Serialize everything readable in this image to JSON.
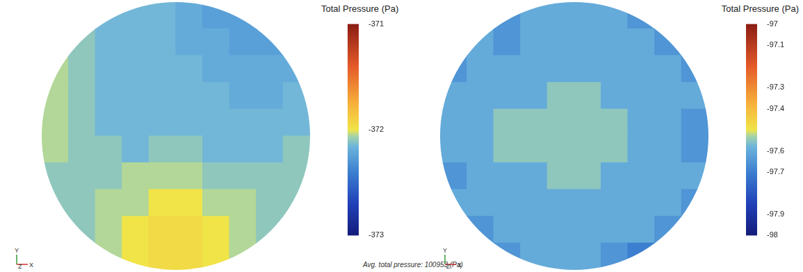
{
  "chart_data": [
    {
      "type": "heatmap",
      "axis_labels": {
        "x": "X",
        "y": "Y",
        "z": "Z"
      },
      "annotation": "Avg. total pressure: 100953 (Pa)",
      "color_bar": {
        "title": "Total Pressure (Pa)",
        "range": [
          -373,
          -371
        ],
        "ticks": [
          -373,
          -372,
          -371
        ]
      },
      "cells": [
        [
          null,
          null,
          -372.15,
          -372.15,
          -372.15,
          -372.2,
          -372.25,
          -372.25,
          null,
          null
        ],
        [
          null,
          -372.1,
          -372.15,
          -372.15,
          -372.15,
          -372.2,
          -372.2,
          -372.25,
          -372.25,
          null
        ],
        [
          -372.05,
          -372.1,
          -372.15,
          -372.15,
          -372.15,
          -372.15,
          -372.2,
          -372.2,
          -372.2,
          -372.2
        ],
        [
          -372.05,
          -372.1,
          -372.15,
          -372.15,
          -372.15,
          -372.15,
          -372.15,
          -372.2,
          -372.2,
          -372.15
        ],
        [
          -372.05,
          -372.1,
          -372.15,
          -372.15,
          -372.15,
          -372.15,
          -372.15,
          -372.15,
          -372.15,
          -372.15
        ],
        [
          -372.05,
          -372.1,
          -372.1,
          -372.15,
          -372.1,
          -372.1,
          -372.15,
          -372.15,
          -372.15,
          -372.1
        ],
        [
          -372.1,
          -372.1,
          -372.1,
          -372.05,
          -372.05,
          -372.05,
          -372.1,
          -372.1,
          -372.1,
          -372.1
        ],
        [
          -372.1,
          -372.1,
          -372.05,
          -372.05,
          -372.0,
          -372.0,
          -372.05,
          -372.05,
          -372.1,
          -372.1
        ],
        [
          null,
          -372.1,
          -372.05,
          -372.0,
          -371.95,
          -371.95,
          -372.0,
          -372.05,
          -372.1,
          null
        ],
        [
          null,
          null,
          -372.05,
          -372.0,
          -371.95,
          -371.95,
          -372.0,
          -372.05,
          null,
          null
        ]
      ]
    },
    {
      "type": "heatmap",
      "axis_labels": {
        "x": "X",
        "y": "Y",
        "z": "Z"
      },
      "color_bar": {
        "title": "Total Pressure (Pa)",
        "range": [
          -98,
          -97
        ],
        "ticks": [
          -98,
          -97.9,
          -97.7,
          -97.6,
          -97.4,
          -97.3,
          -97.1,
          -97
        ]
      },
      "cells": [
        [
          null,
          null,
          -97.65,
          -97.6,
          -97.6,
          -97.6,
          -97.6,
          -97.65,
          null,
          null
        ],
        [
          null,
          -97.6,
          -97.65,
          -97.6,
          -97.6,
          -97.6,
          -97.6,
          -97.6,
          -97.65,
          null
        ],
        [
          -97.65,
          -97.6,
          -97.6,
          -97.6,
          -97.6,
          -97.6,
          -97.6,
          -97.6,
          -97.6,
          -97.65
        ],
        [
          -97.6,
          -97.6,
          -97.6,
          -97.6,
          -97.55,
          -97.55,
          -97.6,
          -97.6,
          -97.6,
          -97.6
        ],
        [
          -97.6,
          -97.6,
          -97.55,
          -97.55,
          -97.55,
          -97.55,
          -97.55,
          -97.6,
          -97.6,
          -97.65
        ],
        [
          -97.6,
          -97.6,
          -97.55,
          -97.55,
          -97.55,
          -97.55,
          -97.55,
          -97.6,
          -97.6,
          -97.65
        ],
        [
          -97.65,
          -97.6,
          -97.6,
          -97.6,
          -97.55,
          -97.55,
          -97.6,
          -97.6,
          -97.6,
          -97.6
        ],
        [
          -97.6,
          -97.6,
          -97.6,
          -97.6,
          -97.6,
          -97.6,
          -97.6,
          -97.6,
          -97.6,
          -97.65
        ],
        [
          null,
          -97.65,
          -97.6,
          -97.6,
          -97.6,
          -97.6,
          -97.6,
          -97.6,
          -97.65,
          null
        ],
        [
          null,
          null,
          -97.65,
          -97.6,
          -97.6,
          -97.6,
          -97.65,
          -97.7,
          null,
          null
        ]
      ]
    }
  ]
}
